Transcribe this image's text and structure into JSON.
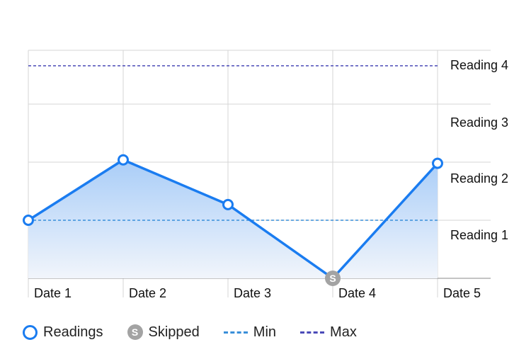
{
  "chart_data": {
    "type": "area",
    "categories": [
      "Date 1",
      "Date 2",
      "Date 3",
      "Date 4",
      "Date 5"
    ],
    "y_labels": [
      "Reading 1",
      "Reading 2",
      "Reading 3",
      "Reading 4"
    ],
    "series": [
      {
        "name": "Readings",
        "color": "#1a7cf0",
        "points": [
          {
            "x": "Date 1",
            "y": 1.0
          },
          {
            "x": "Date 2",
            "y": 2.04
          },
          {
            "x": "Date 3",
            "y": 1.27
          },
          {
            "x": "Date 4",
            "y": 0.0,
            "skipped": true
          },
          {
            "x": "Date 5",
            "y": 1.98
          }
        ]
      }
    ],
    "reference_lines": [
      {
        "name": "Min",
        "y": 1.0,
        "color": "#3a8fd9"
      },
      {
        "name": "Max",
        "y": 3.66,
        "color": "#4b4bb8"
      }
    ],
    "ylim": [
      0,
      4
    ],
    "grid": true,
    "legend_position": "bottom-left"
  },
  "legend": {
    "readings_label": "Readings",
    "skipped_label": "Skipped",
    "min_label": "Min",
    "max_label": "Max",
    "skipped_marker": "S"
  },
  "colors": {
    "line": "#1a7cf0",
    "fill_top": "#a9cdf8",
    "fill_bottom": "#f1f5fb",
    "grid": "#d6d6d6",
    "axis": "#888888",
    "skipped": "#a3a3a3",
    "min": "#3a8fd9",
    "max": "#4b4bb8"
  }
}
